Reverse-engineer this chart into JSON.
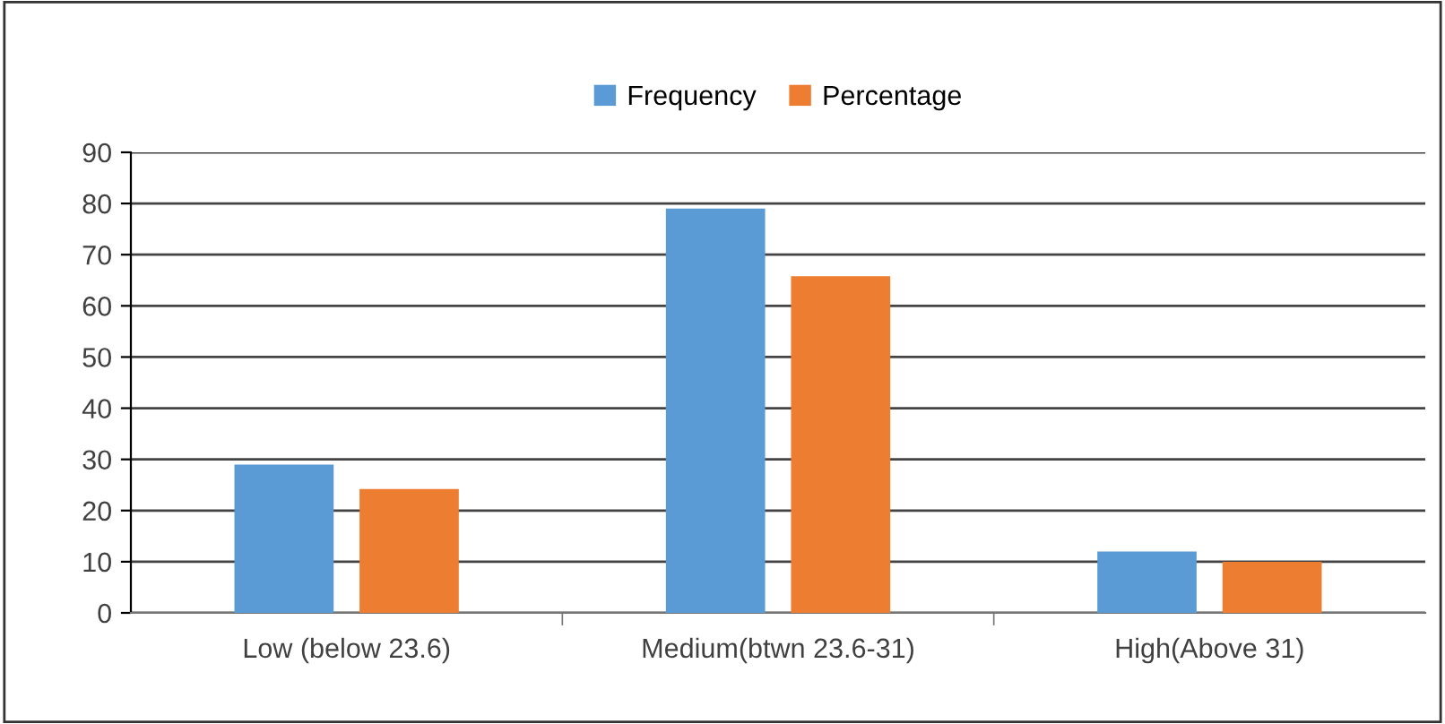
{
  "chart_data": {
    "type": "bar",
    "categories": [
      "Low (below 23.6)",
      "Medium(btwn 23.6-31)",
      "High(Above 31)"
    ],
    "series": [
      {
        "name": "Frequency",
        "color": "#5b9bd5",
        "values": [
          29,
          79,
          12
        ]
      },
      {
        "name": "Percentage",
        "color": "#ed7d31",
        "values": [
          24.2,
          65.8,
          10
        ]
      }
    ],
    "ylim": [
      0,
      90
    ],
    "yticks": [
      0,
      10,
      20,
      30,
      40,
      50,
      60,
      70,
      80,
      90
    ],
    "grid": "y",
    "legend": "top"
  }
}
